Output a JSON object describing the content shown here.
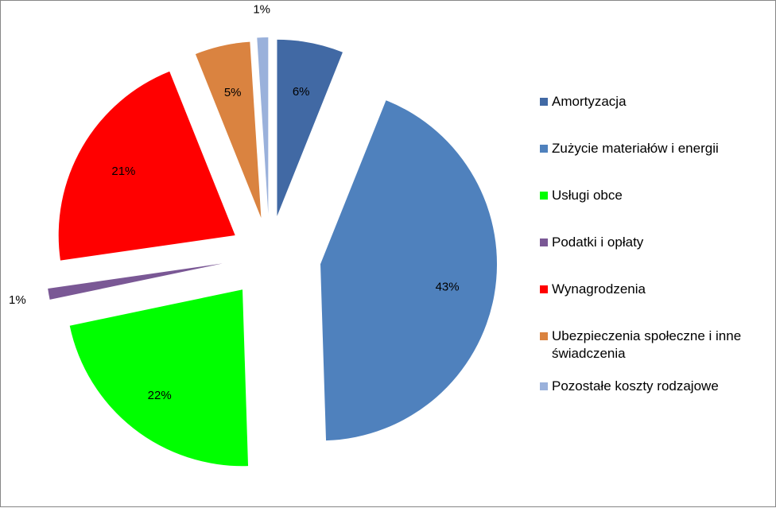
{
  "chart_data": {
    "type": "pie",
    "exploded": true,
    "categories": [
      "Amortyzacja",
      "Zużycie materiałów i energii",
      "Usługi obce",
      "Podatki i opłaty",
      "Wynagrodzenia",
      "Ubezpieczenia społeczne i inne świadczenia",
      "Pozostałe koszty rodzajowe"
    ],
    "values": [
      6,
      43,
      22,
      1,
      21,
      5,
      1
    ],
    "data_labels": [
      "6%",
      "43%",
      "22%",
      "1%",
      "21%",
      "5%",
      "1%"
    ],
    "colors": [
      "#4169A4",
      "#4F81BD",
      "#00FF00",
      "#7A5895",
      "#FF0000",
      "#DA8340",
      "#9AB1DB"
    ],
    "legend_position": "right"
  }
}
